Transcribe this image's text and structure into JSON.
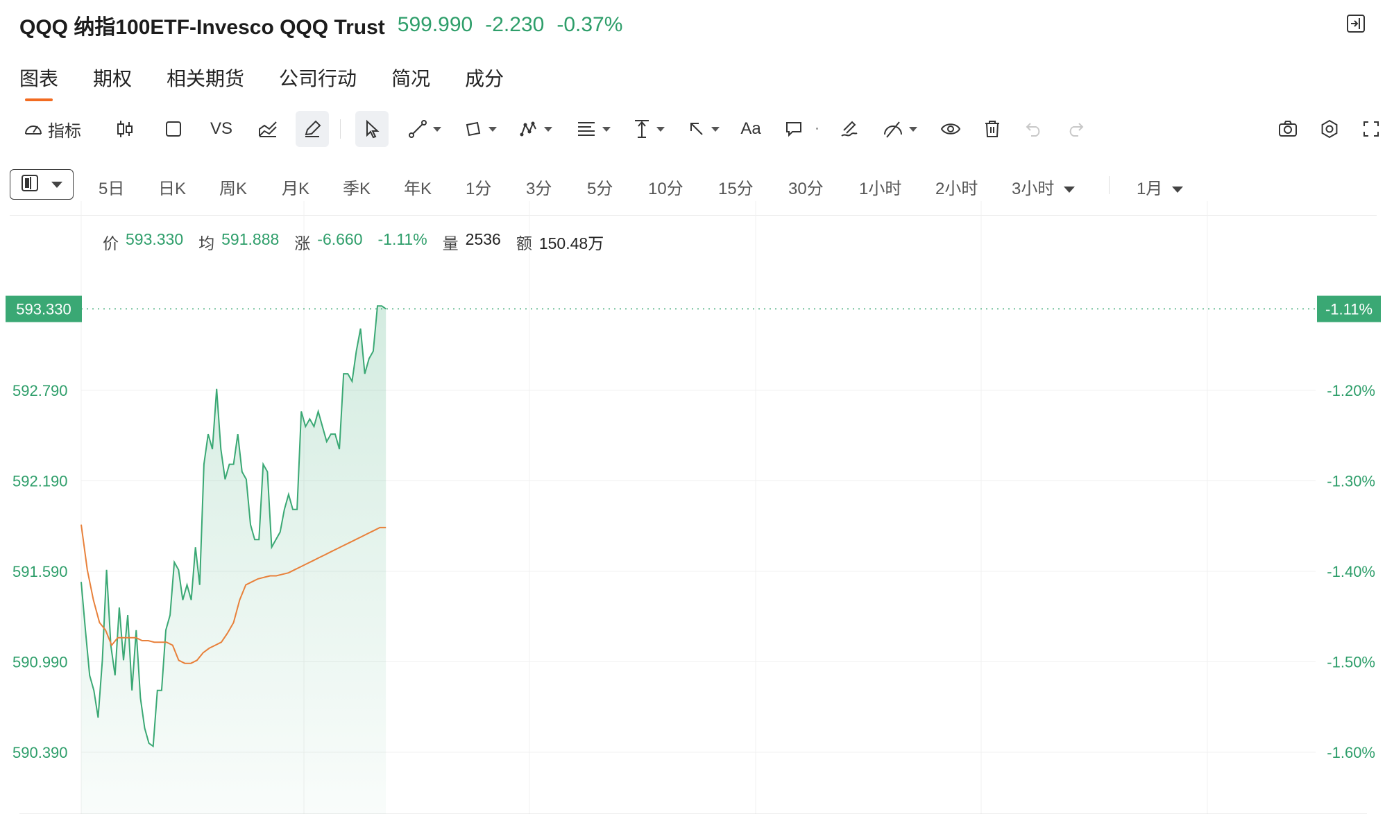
{
  "header": {
    "title": "QQQ 纳指100ETF-Invesco QQQ Trust",
    "price": "599.990",
    "change": "-2.230",
    "change_pct": "-0.37%",
    "quote_color": "#2e9e6a"
  },
  "tabs": [
    {
      "label": "图表",
      "active": true
    },
    {
      "label": "期权"
    },
    {
      "label": "相关期货"
    },
    {
      "label": "公司行动"
    },
    {
      "label": "简况"
    },
    {
      "label": "成分"
    }
  ],
  "toolbar": {
    "indicator_label": "指标",
    "vs_label": "VS",
    "text_label": "Aa"
  },
  "periods": {
    "items": [
      "5日",
      "日K",
      "周K",
      "月K",
      "季K",
      "年K",
      "1分",
      "3分",
      "5分",
      "10分",
      "15分",
      "30分",
      "1小时",
      "2小时",
      "3小时"
    ],
    "range": "1月"
  },
  "info": {
    "price_label": "价",
    "price_value": "593.330",
    "avg_label": "均",
    "avg_value": "591.888",
    "change_label": "涨",
    "change_value": "-6.660",
    "change_pct": "-1.11%",
    "volume_label": "量",
    "volume_value": "2536",
    "amount_label": "额",
    "amount_value": "150.48万"
  },
  "chart_data": {
    "type": "line",
    "y_left_ticks": [
      "592.790",
      "592.190",
      "591.590",
      "590.990",
      "590.390"
    ],
    "y_right_ticks": [
      "-1.20%",
      "-1.30%",
      "-1.40%",
      "-1.50%",
      "-1.60%"
    ],
    "ylim": [
      589.98,
      593.64
    ],
    "current_price_label": "593.330",
    "current_pct_label": "-1.11%",
    "current_price": 593.33,
    "grid": true,
    "colors": {
      "price": "#3aa874",
      "avg": "#e8803a",
      "grid": "#f0f0f0",
      "axis_text": "#2e9e6a"
    },
    "series": [
      {
        "name": "价",
        "values": [
          591.52,
          591.2,
          590.9,
          590.8,
          590.62,
          591.0,
          591.6,
          591.1,
          590.9,
          591.35,
          591.0,
          591.3,
          590.8,
          591.2,
          590.75,
          590.55,
          590.45,
          590.43,
          590.8,
          590.8,
          591.2,
          591.3,
          591.65,
          591.6,
          591.4,
          591.5,
          591.4,
          591.75,
          591.5,
          592.3,
          592.5,
          592.4,
          592.8,
          592.4,
          592.2,
          592.3,
          592.3,
          592.5,
          592.25,
          592.2,
          591.9,
          591.8,
          591.8,
          592.3,
          592.25,
          591.75,
          591.8,
          591.85,
          592.0,
          592.1,
          592.0,
          592.0,
          592.65,
          592.55,
          592.6,
          592.55,
          592.65,
          592.55,
          592.45,
          592.5,
          592.5,
          592.4,
          592.9,
          592.9,
          592.85,
          593.05,
          593.2,
          592.9,
          593.0,
          593.05,
          593.35,
          593.35,
          593.33
        ]
      },
      {
        "name": "均",
        "values": [
          591.9,
          591.6,
          591.4,
          591.25,
          591.2,
          591.1,
          591.15,
          591.15,
          591.15,
          591.15,
          591.13,
          591.13,
          591.12,
          591.12,
          591.12,
          591.1,
          591.0,
          590.98,
          590.98,
          591.0,
          591.05,
          591.08,
          591.1,
          591.12,
          591.18,
          591.25,
          591.4,
          591.5,
          591.52,
          591.54,
          591.55,
          591.56,
          591.56,
          591.57,
          591.58,
          591.6,
          591.62,
          591.64,
          591.66,
          591.68,
          591.7,
          591.72,
          591.74,
          591.76,
          591.78,
          591.8,
          591.82,
          591.84,
          591.86,
          591.88,
          591.88
        ]
      }
    ]
  }
}
